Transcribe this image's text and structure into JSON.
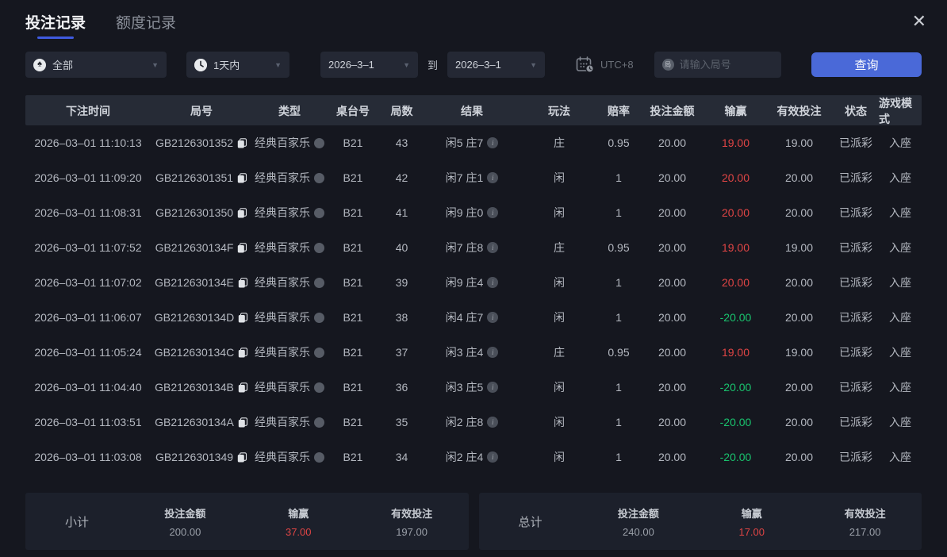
{
  "window": {
    "close_icon": "✕"
  },
  "tabs": [
    {
      "label": "投注记录",
      "active": true
    },
    {
      "label": "额度记录",
      "active": false
    }
  ],
  "filters": {
    "game_type": {
      "icon": "♠",
      "value": "全部"
    },
    "time_range": {
      "value": "1天内"
    },
    "date_from": "2026–3–1",
    "to_label": "到",
    "date_to": "2026–3–1",
    "timezone": "UTC+8",
    "round_input": {
      "icon_char": "局",
      "placeholder": "请输入局号",
      "value": ""
    },
    "search_button": "查询"
  },
  "table": {
    "columns": [
      "下注时间",
      "局号",
      "类型",
      "桌台号",
      "局数",
      "结果",
      "玩法",
      "赔率",
      "投注金额",
      "输赢",
      "有效投注",
      "状态",
      "游戏模式"
    ],
    "rows": [
      {
        "time": "2026–03–01 11:10:13",
        "round_id": "GB2126301352",
        "type": "经典百家乐",
        "table_no": "B21",
        "round_no": "43",
        "result": "闲5 庄7",
        "bet": "庄",
        "odds": "0.95",
        "bet_amount": "20.00",
        "win_loss": "19.00",
        "valid_bet": "19.00",
        "status": "已派彩",
        "mode": "入座"
      },
      {
        "time": "2026–03–01 11:09:20",
        "round_id": "GB2126301351",
        "type": "经典百家乐",
        "table_no": "B21",
        "round_no": "42",
        "result": "闲7 庄1",
        "bet": "闲",
        "odds": "1",
        "bet_amount": "20.00",
        "win_loss": "20.00",
        "valid_bet": "20.00",
        "status": "已派彩",
        "mode": "入座"
      },
      {
        "time": "2026–03–01 11:08:31",
        "round_id": "GB2126301350",
        "type": "经典百家乐",
        "table_no": "B21",
        "round_no": "41",
        "result": "闲9 庄0",
        "bet": "闲",
        "odds": "1",
        "bet_amount": "20.00",
        "win_loss": "20.00",
        "valid_bet": "20.00",
        "status": "已派彩",
        "mode": "入座"
      },
      {
        "time": "2026–03–01 11:07:52",
        "round_id": "GB212630134F",
        "type": "经典百家乐",
        "table_no": "B21",
        "round_no": "40",
        "result": "闲7 庄8",
        "bet": "庄",
        "odds": "0.95",
        "bet_amount": "20.00",
        "win_loss": "19.00",
        "valid_bet": "19.00",
        "status": "已派彩",
        "mode": "入座"
      },
      {
        "time": "2026–03–01 11:07:02",
        "round_id": "GB212630134E",
        "type": "经典百家乐",
        "table_no": "B21",
        "round_no": "39",
        "result": "闲9 庄4",
        "bet": "闲",
        "odds": "1",
        "bet_amount": "20.00",
        "win_loss": "20.00",
        "valid_bet": "20.00",
        "status": "已派彩",
        "mode": "入座"
      },
      {
        "time": "2026–03–01 11:06:07",
        "round_id": "GB212630134D",
        "type": "经典百家乐",
        "table_no": "B21",
        "round_no": "38",
        "result": "闲4 庄7",
        "bet": "闲",
        "odds": "1",
        "bet_amount": "20.00",
        "win_loss": "-20.00",
        "valid_bet": "20.00",
        "status": "已派彩",
        "mode": "入座"
      },
      {
        "time": "2026–03–01 11:05:24",
        "round_id": "GB212630134C",
        "type": "经典百家乐",
        "table_no": "B21",
        "round_no": "37",
        "result": "闲3 庄4",
        "bet": "庄",
        "odds": "0.95",
        "bet_amount": "20.00",
        "win_loss": "19.00",
        "valid_bet": "19.00",
        "status": "已派彩",
        "mode": "入座"
      },
      {
        "time": "2026–03–01 11:04:40",
        "round_id": "GB212630134B",
        "type": "经典百家乐",
        "table_no": "B21",
        "round_no": "36",
        "result": "闲3 庄5",
        "bet": "闲",
        "odds": "1",
        "bet_amount": "20.00",
        "win_loss": "-20.00",
        "valid_bet": "20.00",
        "status": "已派彩",
        "mode": "入座"
      },
      {
        "time": "2026–03–01 11:03:51",
        "round_id": "GB212630134A",
        "type": "经典百家乐",
        "table_no": "B21",
        "round_no": "35",
        "result": "闲2 庄8",
        "bet": "闲",
        "odds": "1",
        "bet_amount": "20.00",
        "win_loss": "-20.00",
        "valid_bet": "20.00",
        "status": "已派彩",
        "mode": "入座"
      },
      {
        "time": "2026–03–01 11:03:08",
        "round_id": "GB2126301349",
        "type": "经典百家乐",
        "table_no": "B21",
        "round_no": "34",
        "result": "闲2 庄4",
        "bet": "闲",
        "odds": "1",
        "bet_amount": "20.00",
        "win_loss": "-20.00",
        "valid_bet": "20.00",
        "status": "已派彩",
        "mode": "入座"
      }
    ]
  },
  "summary": {
    "subtotal": {
      "label": "小计",
      "bet_amount_label": "投注金额",
      "bet_amount": "200.00",
      "win_loss_label": "输赢",
      "win_loss": "37.00",
      "valid_bet_label": "有效投注",
      "valid_bet": "197.00"
    },
    "total": {
      "label": "总计",
      "bet_amount_label": "投注金额",
      "bet_amount": "240.00",
      "win_loss_label": "输赢",
      "win_loss": "17.00",
      "valid_bet_label": "有效投注",
      "valid_bet": "217.00"
    }
  },
  "colors": {
    "accent": "#4a69d8",
    "tab_underline": "#3f5be0",
    "win": "#e14545",
    "loss": "#19c26d"
  }
}
